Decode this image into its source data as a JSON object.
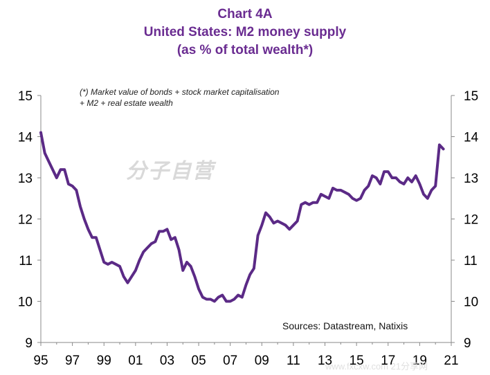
{
  "title_lines": [
    "Chart 4A",
    "United States: M2 money supply",
    "(as % of total wealth*)"
  ],
  "note_lines": [
    "(*) Market value of bonds + stock market capitalisation",
    "+ M2 + real estate wealth"
  ],
  "source": "Sources: Datastream,  Natixis",
  "watermark": "分子自营",
  "footer": "www.fxcxw.com  21分享网",
  "colors": {
    "line": "#5b2a86",
    "title": "#6a2c91"
  },
  "chart_data": {
    "type": "line",
    "title": "United States: M2 money supply (as % of total wealth*)",
    "ylim": [
      9,
      15
    ],
    "y_ticks": [
      9,
      10,
      11,
      12,
      13,
      14,
      15
    ],
    "xlim": [
      1995,
      2021
    ],
    "x_ticks": [
      1995,
      1997,
      1999,
      2001,
      2003,
      2005,
      2007,
      2009,
      2011,
      2013,
      2015,
      2017,
      2019,
      2021
    ],
    "x_tick_labels": [
      "95",
      "97",
      "99",
      "01",
      "03",
      "05",
      "07",
      "09",
      "11",
      "13",
      "15",
      "17",
      "19",
      "21"
    ],
    "dual_y_axis": true,
    "grid": false,
    "series": [
      {
        "values": [
          [
            1995.0,
            14.1
          ],
          [
            1995.25,
            13.6
          ],
          [
            1995.5,
            13.4
          ],
          [
            1995.75,
            13.2
          ],
          [
            1996.0,
            13.0
          ],
          [
            1996.25,
            13.2
          ],
          [
            1996.5,
            13.2
          ],
          [
            1996.75,
            12.85
          ],
          [
            1997.0,
            12.8
          ],
          [
            1997.25,
            12.7
          ],
          [
            1997.5,
            12.3
          ],
          [
            1997.75,
            12.0
          ],
          [
            1998.0,
            11.75
          ],
          [
            1998.25,
            11.55
          ],
          [
            1998.5,
            11.55
          ],
          [
            1998.75,
            11.25
          ],
          [
            1999.0,
            10.95
          ],
          [
            1999.25,
            10.9
          ],
          [
            1999.5,
            10.95
          ],
          [
            1999.75,
            10.9
          ],
          [
            2000.0,
            10.85
          ],
          [
            2000.25,
            10.6
          ],
          [
            2000.5,
            10.45
          ],
          [
            2000.75,
            10.6
          ],
          [
            2001.0,
            10.75
          ],
          [
            2001.25,
            11.0
          ],
          [
            2001.5,
            11.2
          ],
          [
            2001.75,
            11.3
          ],
          [
            2002.0,
            11.4
          ],
          [
            2002.25,
            11.45
          ],
          [
            2002.5,
            11.7
          ],
          [
            2002.75,
            11.7
          ],
          [
            2003.0,
            11.75
          ],
          [
            2003.25,
            11.5
          ],
          [
            2003.5,
            11.55
          ],
          [
            2003.75,
            11.25
          ],
          [
            2004.0,
            10.75
          ],
          [
            2004.25,
            10.95
          ],
          [
            2004.5,
            10.85
          ],
          [
            2004.75,
            10.6
          ],
          [
            2005.0,
            10.3
          ],
          [
            2005.25,
            10.1
          ],
          [
            2005.5,
            10.05
          ],
          [
            2005.75,
            10.05
          ],
          [
            2006.0,
            10.0
          ],
          [
            2006.25,
            10.1
          ],
          [
            2006.5,
            10.15
          ],
          [
            2006.75,
            10.0
          ],
          [
            2007.0,
            10.0
          ],
          [
            2007.25,
            10.05
          ],
          [
            2007.5,
            10.15
          ],
          [
            2007.75,
            10.1
          ],
          [
            2008.0,
            10.4
          ],
          [
            2008.25,
            10.65
          ],
          [
            2008.5,
            10.8
          ],
          [
            2008.75,
            11.6
          ],
          [
            2009.0,
            11.85
          ],
          [
            2009.25,
            12.15
          ],
          [
            2009.5,
            12.05
          ],
          [
            2009.75,
            11.9
          ],
          [
            2010.0,
            11.95
          ],
          [
            2010.25,
            11.9
          ],
          [
            2010.5,
            11.85
          ],
          [
            2010.75,
            11.75
          ],
          [
            2011.0,
            11.85
          ],
          [
            2011.25,
            11.95
          ],
          [
            2011.5,
            12.35
          ],
          [
            2011.75,
            12.4
          ],
          [
            2012.0,
            12.35
          ],
          [
            2012.25,
            12.4
          ],
          [
            2012.5,
            12.4
          ],
          [
            2012.75,
            12.6
          ],
          [
            2013.0,
            12.55
          ],
          [
            2013.25,
            12.5
          ],
          [
            2013.5,
            12.75
          ],
          [
            2013.75,
            12.7
          ],
          [
            2014.0,
            12.7
          ],
          [
            2014.25,
            12.65
          ],
          [
            2014.5,
            12.6
          ],
          [
            2014.75,
            12.5
          ],
          [
            2015.0,
            12.45
          ],
          [
            2015.25,
            12.5
          ],
          [
            2015.5,
            12.7
          ],
          [
            2015.75,
            12.8
          ],
          [
            2016.0,
            13.05
          ],
          [
            2016.25,
            13.0
          ],
          [
            2016.5,
            12.85
          ],
          [
            2016.75,
            13.15
          ],
          [
            2017.0,
            13.15
          ],
          [
            2017.25,
            13.0
          ],
          [
            2017.5,
            13.0
          ],
          [
            2017.75,
            12.9
          ],
          [
            2018.0,
            12.85
          ],
          [
            2018.25,
            13.0
          ],
          [
            2018.5,
            12.9
          ],
          [
            2018.75,
            13.05
          ],
          [
            2019.0,
            12.85
          ],
          [
            2019.25,
            12.6
          ],
          [
            2019.5,
            12.5
          ],
          [
            2019.75,
            12.7
          ],
          [
            2020.0,
            12.8
          ],
          [
            2020.25,
            13.8
          ],
          [
            2020.5,
            13.7
          ]
        ]
      }
    ]
  }
}
